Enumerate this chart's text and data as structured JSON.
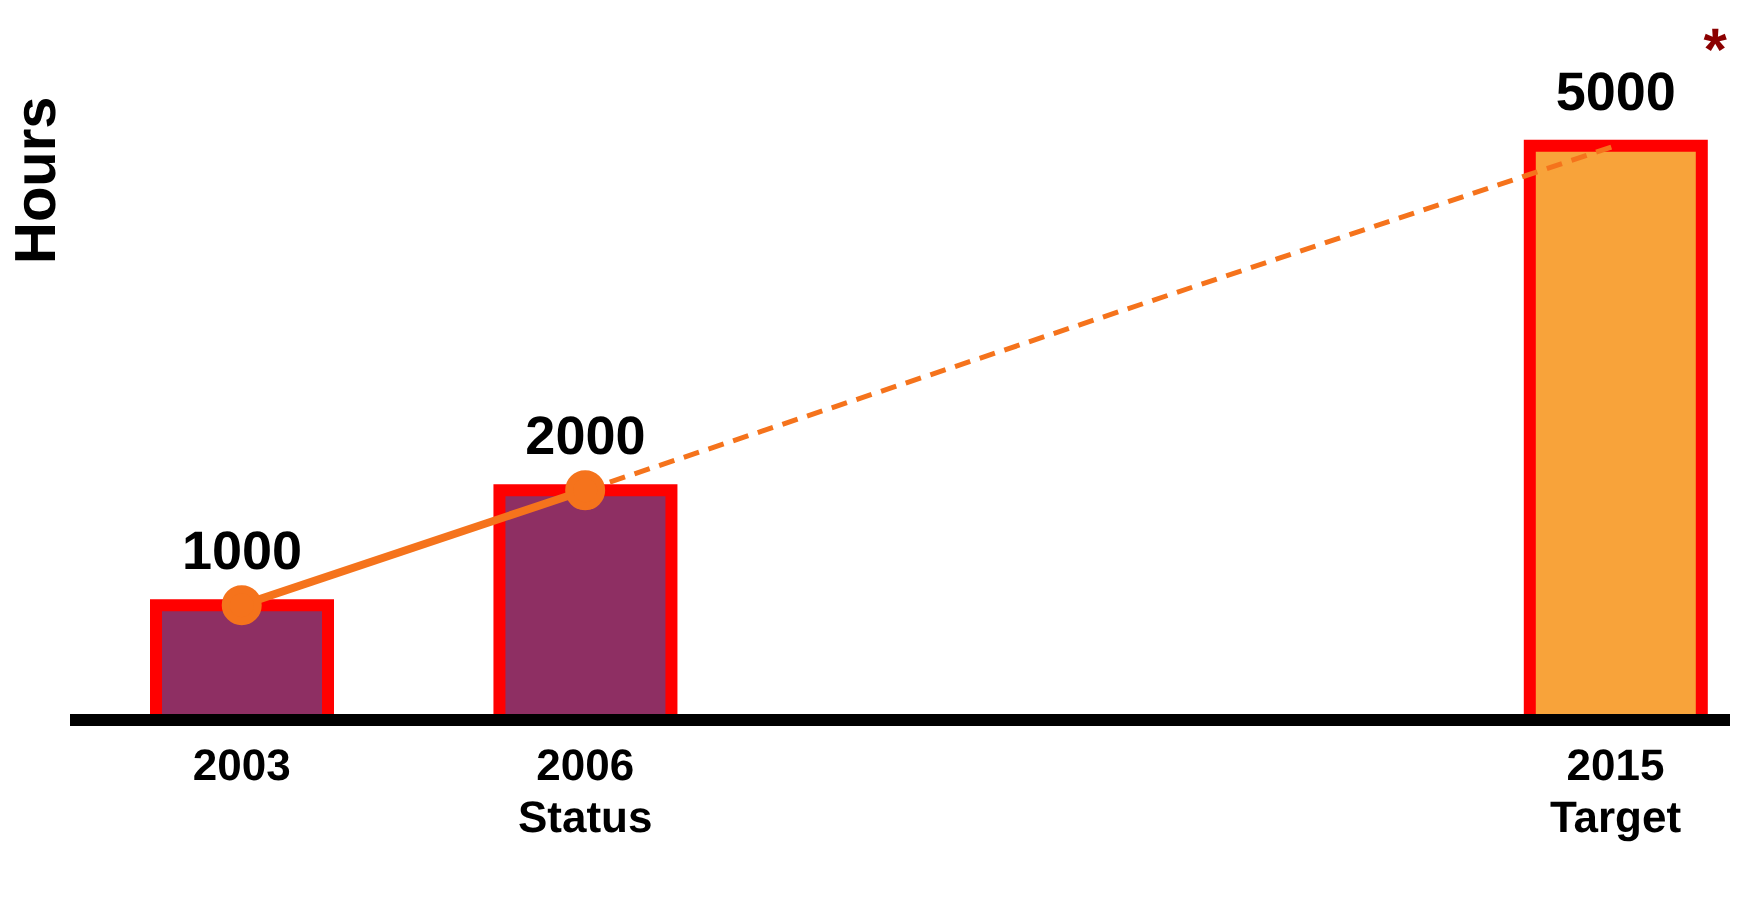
{
  "chart_data": {
    "type": "bar",
    "ylabel": "Hours",
    "x": [
      2003,
      2006,
      2015
    ],
    "xlim": [
      2001.5,
      2016
    ],
    "xticks": [
      {
        "value": 2003,
        "label": "2003"
      },
      {
        "value": 2006,
        "label": "2006\nStatus"
      },
      {
        "value": 2015,
        "label": "2015\nTarget"
      }
    ],
    "series": [
      {
        "values": [
          1000,
          2000,
          5000
        ],
        "value_labels": [
          "1000",
          "2000",
          "5000"
        ],
        "colors": [
          "#8e2f63",
          "#8e2f63",
          "#f8a33a"
        ]
      },
      {
        "type": "line",
        "color": "#f5731c",
        "values": [
          1000,
          2000,
          null
        ],
        "marker": "circle",
        "line_style": "solid"
      },
      {
        "type": "line",
        "color": "#f5731c",
        "x": [
          2006,
          2015
        ],
        "values": [
          2000,
          5000
        ],
        "marker": "none",
        "line_style": "dashed"
      }
    ],
    "annotations": [
      {
        "text": "*",
        "x": 2015,
        "y": 5000
      }
    ],
    "grid": false,
    "legend": false
  }
}
